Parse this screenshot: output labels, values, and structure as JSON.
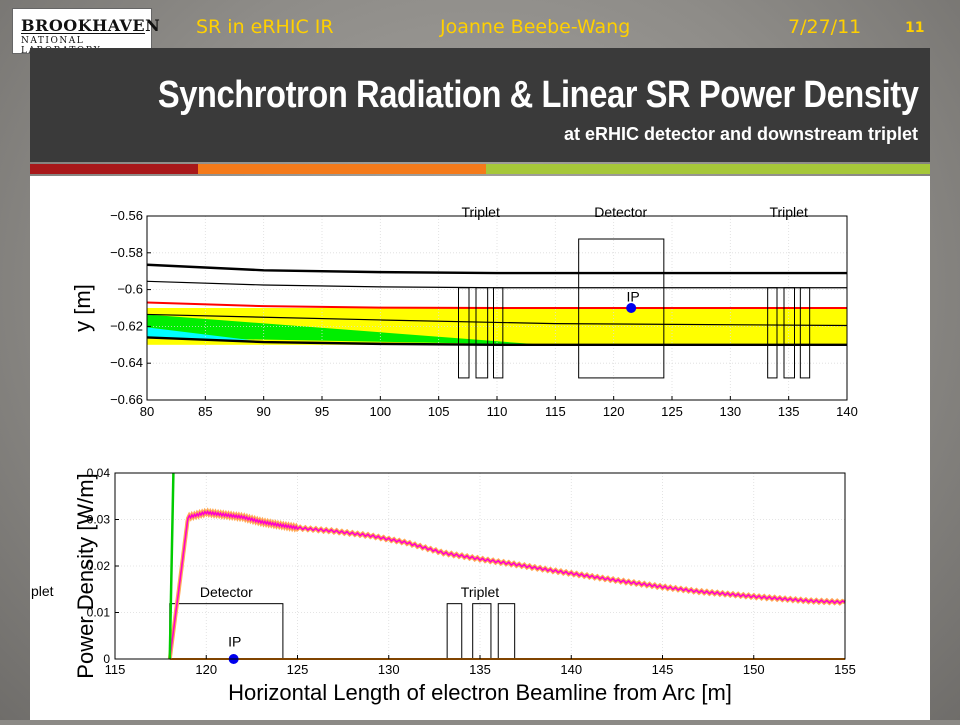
{
  "header": {
    "logo_top": "BROOKHAVEN",
    "logo_bottom": "NATIONAL LABORATORY",
    "topic": "SR in eRHIC IR",
    "author": "Joanne Beebe-Wang",
    "date": "7/27/11",
    "page": "11"
  },
  "slide": {
    "title": "Synchrotron Radiation & Linear SR Power Density",
    "subtitle": "at eRHIC detector and downstream triplet",
    "colors": {
      "title_bar": "#3a3a3a",
      "stripe_red": "#a8181a",
      "stripe_orange": "#f47a1a",
      "stripe_green": "#a6c739",
      "header_text": "#ffd000"
    }
  },
  "chart_data": [
    {
      "type": "line",
      "xlim": [
        80,
        140
      ],
      "ylim": [
        -0.66,
        -0.56
      ],
      "x_ticks": [
        "80",
        "85",
        "90",
        "95",
        "100",
        "105",
        "110",
        "115",
        "120",
        "125",
        "130",
        "135",
        "140"
      ],
      "y_ticks": [
        "−0.56",
        "−0.58",
        "−0.6",
        "−0.62",
        "−0.64",
        "−0.66"
      ],
      "ylabel": "y [m]",
      "xlabel": "",
      "grid": true,
      "annotations": {
        "triplet_left": "Triplet",
        "detector": "Detector",
        "triplet_right": "Triplet",
        "ip": "IP"
      },
      "ip_point": [
        121.5,
        -0.61
      ],
      "series": [
        {
          "color": "#000000",
          "x": [
            80,
            90,
            100,
            110,
            140
          ],
          "y": [
            -0.5865,
            -0.5895,
            -0.5905,
            -0.591,
            -0.591
          ]
        },
        {
          "color": "#000000",
          "x": [
            80,
            90,
            100,
            110,
            140
          ],
          "y": [
            -0.5955,
            -0.5975,
            -0.5985,
            -0.599,
            -0.599
          ]
        },
        {
          "color": "#ff0000",
          "x": [
            80,
            90,
            100,
            110,
            140
          ],
          "y": [
            -0.607,
            -0.609,
            -0.6098,
            -0.61,
            -0.61
          ]
        },
        {
          "color": "#000000",
          "x": [
            80,
            100,
            115,
            140
          ],
          "y": [
            -0.6135,
            -0.6165,
            -0.6185,
            -0.6195
          ]
        },
        {
          "color": "#000000",
          "x": [
            80,
            90,
            100,
            110,
            140
          ],
          "y": [
            -0.626,
            -0.6285,
            -0.6295,
            -0.63,
            -0.63
          ]
        }
      ],
      "fills": [
        {
          "color": "#ffff00",
          "x_range": [
            80,
            140
          ],
          "y_top": -0.61,
          "y_bottom": -0.63
        },
        {
          "color": "#00ee00",
          "x_top": [
            80,
            114
          ],
          "y_top": [
            -0.6135,
            -0.63
          ]
        },
        {
          "color": "#00ffff",
          "x_top": [
            80,
            89
          ],
          "y_top": [
            -0.6205,
            -0.6275
          ]
        }
      ]
    },
    {
      "type": "line",
      "xlim": [
        115,
        155
      ],
      "ylim": [
        0,
        0.04
      ],
      "x_ticks": [
        "115",
        "120",
        "125",
        "130",
        "135",
        "140",
        "145",
        "150",
        "155"
      ],
      "y_ticks": [
        "0",
        "0.01",
        "0.02",
        "0.03",
        "0.04"
      ],
      "ylabel": "Power Density [W/m]",
      "xlabel": "Horizontal Length of electron Beamline from Arc [m]",
      "grid": true,
      "annotations": {
        "detector": "Detector",
        "triplet": "Triplet",
        "ip": "IP",
        "cut_label": "plet"
      },
      "ip_point": [
        121.5,
        0
      ],
      "series": [
        {
          "name": "",
          "color": "#ff00cc",
          "x": [
            118,
            118.5,
            119,
            120,
            121,
            122,
            123,
            124,
            125,
            127,
            129,
            131,
            133,
            135,
            137,
            139,
            141,
            143,
            145,
            147,
            149,
            151,
            153,
            155
          ],
          "y": [
            0,
            0.015,
            0.0305,
            0.0315,
            0.031,
            0.0305,
            0.0295,
            0.0288,
            0.0282,
            0.0275,
            0.0265,
            0.025,
            0.0228,
            0.0215,
            0.0203,
            0.019,
            0.0178,
            0.0166,
            0.0155,
            0.0145,
            0.0138,
            0.0131,
            0.0125,
            0.0122
          ]
        },
        {
          "name": "",
          "color": "#00cc00",
          "x": [
            118,
            118.2
          ],
          "y": [
            0,
            0.04
          ]
        }
      ]
    }
  ]
}
